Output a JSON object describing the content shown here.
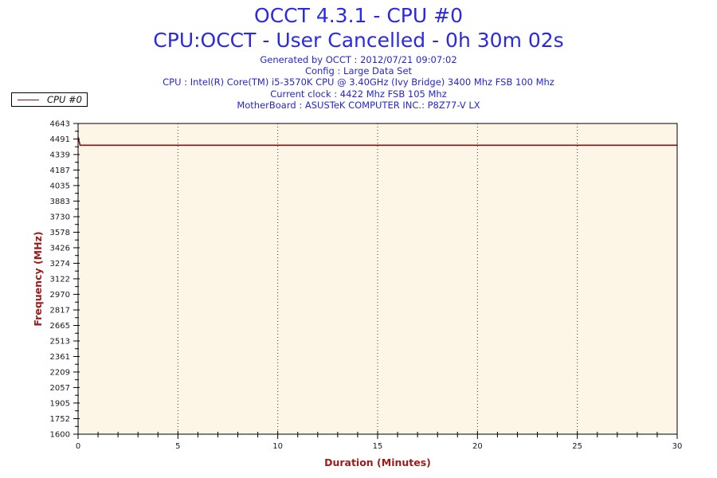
{
  "header": {
    "title": "OCCT 4.3.1 - CPU #0",
    "subtitle": "CPU:OCCT - User Cancelled - 0h 30m 02s",
    "info_lines": [
      "Generated by OCCT : 2012/07/21 09:07:02",
      "Config : Large Data Set",
      "CPU : Intel(R) Core(TM) i5-3570K CPU @ 3.40GHz (Ivy Bridge) 3400 Mhz FSB 100 Mhz",
      "Current clock : 4422 Mhz FSB 105 Mhz",
      "MotherBoard : ASUSTeK COMPUTER INC.: P8Z77-V LX"
    ]
  },
  "legend": {
    "label": "CPU #0",
    "line_color": "#8b1212"
  },
  "colors": {
    "title_blue": "#2a2ae2",
    "info_blue": "#2626cc",
    "axis_title_red": "#9c1c1c",
    "series_red": "#8b1212",
    "plot_background": "#fdf5e6",
    "tick_label": "#1a1a1a",
    "border": "#000000",
    "grid": "#3a3a3a"
  },
  "chart_data": {
    "type": "line",
    "title": "OCCT 4.3.1 - CPU #0",
    "xlabel": "Duration (Minutes)",
    "ylabel": "Frequency (MHz)",
    "xlim": [
      0,
      30
    ],
    "ylim": [
      1600,
      4643
    ],
    "x_major_ticks": [
      0,
      5,
      10,
      15,
      20,
      25,
      30
    ],
    "x_minor_step": 1,
    "y_ticks": [
      4643,
      4491,
      4339,
      4187,
      4035,
      3883,
      3730,
      3578,
      3426,
      3274,
      3122,
      2970,
      2817,
      2665,
      2513,
      2361,
      2209,
      2057,
      1905,
      1752,
      1600
    ],
    "grid": "vertical-dotted-at-x-majors",
    "legend_position": "top-left-outside",
    "series": [
      {
        "name": "CPU #0",
        "color": "#8b1212",
        "points": [
          [
            0,
            4510
          ],
          [
            0.1,
            4430
          ],
          [
            30,
            4430
          ]
        ],
        "steady_value_mhz": 4422
      }
    ]
  }
}
